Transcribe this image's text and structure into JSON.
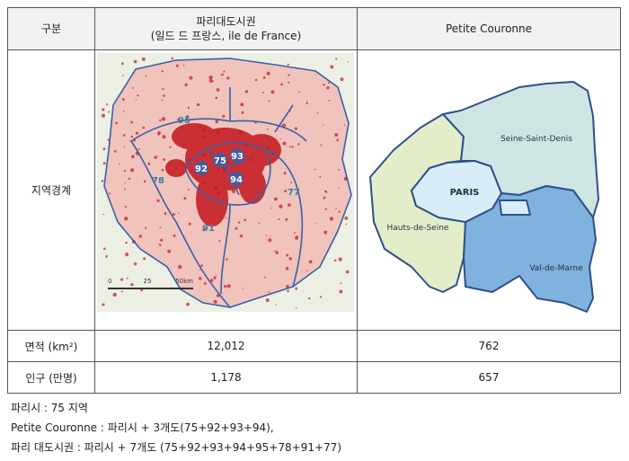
{
  "table": {
    "header": [
      "구분",
      "파리대도시권",
      "(일드 드 프랑스, ile de France)",
      "Petite Couronne"
    ],
    "rows": [
      {
        "label": "지역경계",
        "map_left": {
          "labels": [
            "95",
            "75",
            "93",
            "92",
            "94",
            "78",
            "77",
            "91"
          ],
          "scale": [
            "0",
            "25",
            "50km"
          ]
        },
        "map_right": {
          "labels": [
            "Seine-Saint-Denis",
            "PARIS",
            "Hauts-de-Seine",
            "Val-de-Marne"
          ]
        }
      },
      {
        "label": "면적 (km²)",
        "values": [
          "12,012",
          "762"
        ]
      },
      {
        "label": "인구 (만명)",
        "values": [
          "1,178",
          "657"
        ]
      }
    ]
  },
  "notes": [
    "파리시 : 75 지역",
    "Petite Couronne : 파리시 + 3개도(75+92+93+94),",
    "파리 대도시권 : 파리시 + 7개도 (75+92+93+94+95+78+91+77)"
  ]
}
